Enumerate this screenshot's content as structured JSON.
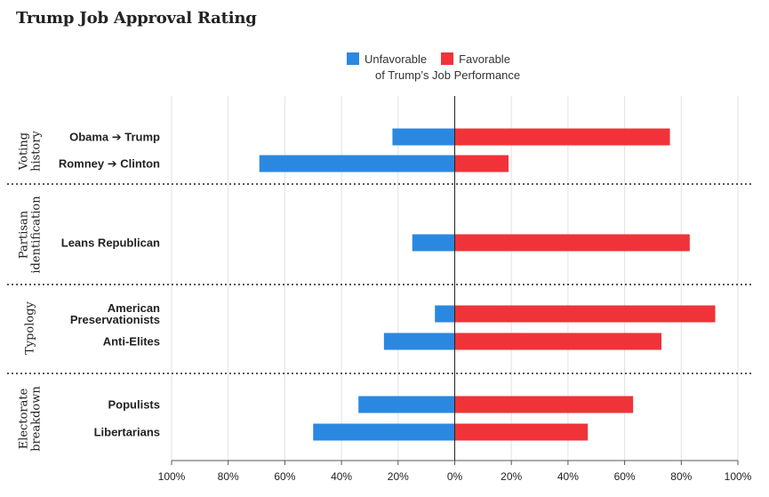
{
  "chart_data": {
    "type": "bar",
    "orientation": "horizontal-diverging",
    "title": "Trump Job Approval Rating",
    "legend_title": "of Trump’s Job Performance",
    "legend_placement": "top-center",
    "series": [
      {
        "name": "Unfavorable",
        "color": "#2b88e0"
      },
      {
        "name": "Favorable",
        "color": "#f03339"
      }
    ],
    "xlim": [
      -100,
      100
    ],
    "x_ticks": [
      -100,
      -80,
      -60,
      -40,
      -20,
      0,
      20,
      40,
      60,
      80,
      100
    ],
    "x_tick_labels": [
      "100%",
      "80%",
      "60%",
      "40%",
      "20%",
      "0%",
      "20%",
      "40%",
      "60%",
      "80%",
      "100%"
    ],
    "grid": true,
    "groups": [
      {
        "label_lines": [
          "Voting",
          "history"
        ],
        "rows": [
          {
            "label_lines": [
              "Obama ➔ Trump"
            ],
            "unfavorable": 22,
            "favorable": 76
          },
          {
            "label_lines": [
              "Romney ➔ Clinton"
            ],
            "unfavorable": 69,
            "favorable": 19
          }
        ]
      },
      {
        "label_lines": [
          "Partisan",
          "identification"
        ],
        "rows": [
          {
            "label_lines": [
              "Leans Republican"
            ],
            "unfavorable": 15,
            "favorable": 83
          }
        ]
      },
      {
        "label_lines": [
          "Typology"
        ],
        "rows": [
          {
            "label_lines": [
              "American",
              "Preservationists"
            ],
            "unfavorable": 7,
            "favorable": 92
          },
          {
            "label_lines": [
              "Anti-Elites"
            ],
            "unfavorable": 25,
            "favorable": 73
          }
        ]
      },
      {
        "label_lines": [
          "Electorate",
          "breakdown"
        ],
        "rows": [
          {
            "label_lines": [
              "Populists"
            ],
            "unfavorable": 34,
            "favorable": 63
          },
          {
            "label_lines": [
              "Libertarians"
            ],
            "unfavorable": 50,
            "favorable": 47
          }
        ]
      }
    ]
  }
}
